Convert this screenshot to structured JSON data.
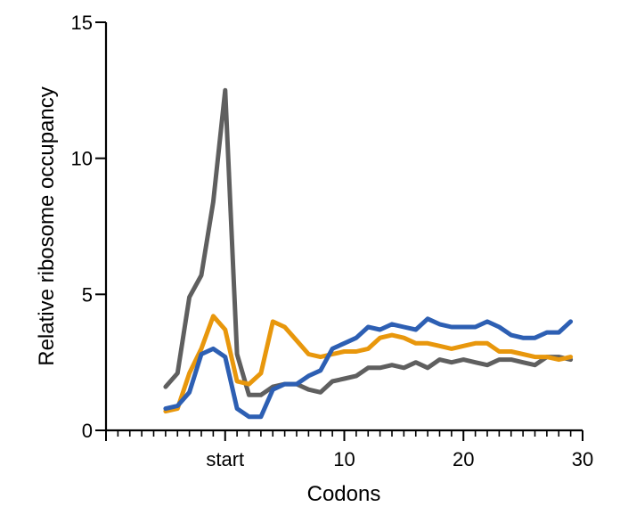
{
  "chart_data": {
    "type": "line",
    "xlabel": "Codons",
    "ylabel": "Relative ribosome occupancy",
    "xlim": [
      -10,
      30
    ],
    "ylim": [
      0,
      15
    ],
    "x_ticks": [
      {
        "value": 0,
        "label": "start"
      },
      {
        "value": 10,
        "label": "10"
      },
      {
        "value": 20,
        "label": "20"
      },
      {
        "value": 30,
        "label": "30"
      }
    ],
    "y_ticks": [
      {
        "value": 0,
        "label": "0"
      },
      {
        "value": 5,
        "label": "5"
      },
      {
        "value": 10,
        "label": "10"
      },
      {
        "value": 15,
        "label": "15"
      }
    ],
    "x": [
      -5,
      -4,
      -3,
      -2,
      -1,
      0,
      1,
      2,
      3,
      4,
      5,
      6,
      7,
      8,
      9,
      10,
      11,
      12,
      13,
      14,
      15,
      16,
      17,
      18,
      19,
      20,
      21,
      22,
      23,
      24,
      25,
      26,
      27,
      28,
      29
    ],
    "series": [
      {
        "color": "#5f5f5f",
        "values": [
          1.6,
          2.1,
          4.9,
          5.7,
          8.4,
          12.5,
          2.8,
          1.3,
          1.3,
          1.6,
          1.7,
          1.7,
          1.5,
          1.4,
          1.8,
          1.9,
          2.0,
          2.3,
          2.3,
          2.4,
          2.3,
          2.5,
          2.3,
          2.6,
          2.5,
          2.6,
          2.5,
          2.4,
          2.6,
          2.6,
          2.5,
          2.4,
          2.7,
          2.7,
          2.6
        ]
      },
      {
        "color": "#e8970c",
        "values": [
          0.7,
          0.8,
          2.1,
          3.0,
          4.2,
          3.7,
          1.8,
          1.7,
          2.1,
          4.0,
          3.8,
          3.3,
          2.8,
          2.7,
          2.8,
          2.9,
          2.9,
          3.0,
          3.4,
          3.5,
          3.4,
          3.2,
          3.2,
          3.1,
          3.0,
          3.1,
          3.2,
          3.2,
          2.9,
          2.9,
          2.8,
          2.7,
          2.7,
          2.6,
          2.7
        ]
      },
      {
        "color": "#2d5fb3",
        "values": [
          0.8,
          0.9,
          1.4,
          2.8,
          3.0,
          2.7,
          0.8,
          0.5,
          0.5,
          1.5,
          1.7,
          1.7,
          2.0,
          2.2,
          3.0,
          3.2,
          3.4,
          3.8,
          3.7,
          3.9,
          3.8,
          3.7,
          4.1,
          3.9,
          3.8,
          3.8,
          3.8,
          4.0,
          3.8,
          3.5,
          3.4,
          3.4,
          3.6,
          3.6,
          4.0
        ]
      }
    ]
  }
}
